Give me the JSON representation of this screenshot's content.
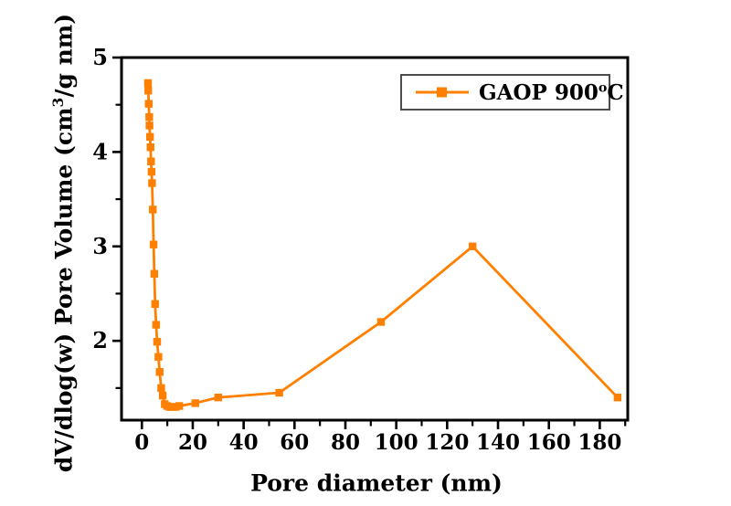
{
  "figure": {
    "background": "#FFFFFF"
  },
  "colors": {
    "series": "#FF8000",
    "axis": "#000000",
    "text": "#000000",
    "legend_border": "#4D4D4D",
    "plot_background": "#FFFFFF"
  },
  "chart_data": {
    "type": "line",
    "title": "",
    "xlabel": "Pore diameter (nm)",
    "ylabel": "dV/dlog(w) Pore Volume (cm³/g nm)",
    "ylabel_parts": {
      "pre": "dV/dlog(w) Pore Volume (cm",
      "sup": "3",
      "post": "/g nm)"
    },
    "legend": {
      "label": "GAOP 900°C",
      "parts": {
        "pre": "GAOP 900",
        "sup": "o",
        "post": "C"
      },
      "position": "top-right",
      "marker": "square"
    },
    "grid": false,
    "xlim": [
      -8,
      191
    ],
    "ylim": [
      1.16,
      5
    ],
    "x_major_ticks": [
      0,
      20,
      40,
      60,
      80,
      100,
      120,
      140,
      160,
      180
    ],
    "x_tick_labels": [
      "0",
      "20",
      "40",
      "60",
      "80",
      "100",
      "120",
      "140",
      "160",
      "180"
    ],
    "x_minor_ticks": [
      10,
      30,
      50,
      70,
      90,
      110,
      130,
      150,
      170,
      190
    ],
    "y_major_ticks": [
      2,
      3,
      4,
      5
    ],
    "y_tick_labels": [
      "2",
      "3",
      "4",
      "5"
    ],
    "y_minor_ticks": [
      1.5,
      2.5,
      3.5,
      4.5
    ],
    "series": [
      {
        "name": "GAOP 900°C",
        "color": "#FF8000",
        "marker": "square",
        "line_style": "solid",
        "x": [
          2.4,
          2.5,
          2.7,
          2.9,
          3.0,
          3.2,
          3.4,
          3.6,
          3.8,
          4.0,
          4.3,
          4.6,
          4.9,
          5.2,
          5.6,
          6.0,
          6.5,
          7.0,
          7.6,
          8.2,
          9.0,
          9.9,
          10.9,
          12.0,
          13.3,
          14.7,
          21,
          30,
          54,
          94,
          130,
          187
        ],
        "y": [
          4.73,
          4.65,
          4.51,
          4.37,
          4.28,
          4.16,
          4.05,
          3.9,
          3.79,
          3.67,
          3.39,
          3.02,
          2.71,
          2.39,
          2.17,
          1.99,
          1.83,
          1.67,
          1.5,
          1.42,
          1.33,
          1.31,
          1.3,
          1.3,
          1.3,
          1.31,
          1.34,
          1.4,
          1.45,
          2.2,
          3.0,
          1.4
        ]
      }
    ]
  }
}
